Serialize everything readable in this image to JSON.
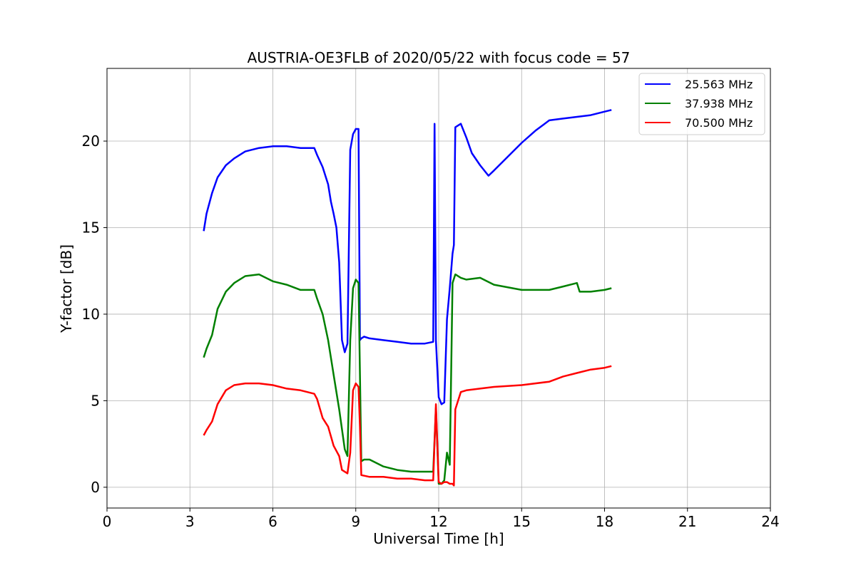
{
  "chart_data": {
    "type": "line",
    "title": "AUSTRIA-OE3FLB of 2020/05/22 with focus code = 57",
    "xlabel": "Universal Time [h]",
    "ylabel": "Y-factor [dB]",
    "xlim": [
      0,
      24
    ],
    "ylim": [
      -1.2,
      24.2
    ],
    "xticks": [
      0,
      3,
      6,
      9,
      12,
      15,
      18,
      21,
      24
    ],
    "yticks": [
      0,
      5,
      10,
      15,
      20
    ],
    "grid": true,
    "legend_position": "top-right",
    "series": [
      {
        "name": "25.563 MHz",
        "color": "#0000ff",
        "x": [
          3.5,
          3.6,
          3.8,
          4.0,
          4.3,
          4.6,
          5.0,
          5.5,
          6.0,
          6.5,
          7.0,
          7.5,
          7.6,
          7.8,
          8.0,
          8.1,
          8.2,
          8.3,
          8.4,
          8.5,
          8.6,
          8.7,
          8.8,
          8.9,
          9.0,
          9.1,
          9.15,
          9.2,
          9.3,
          9.5,
          10.0,
          10.5,
          11.0,
          11.5,
          11.8,
          11.85,
          11.9,
          12.0,
          12.1,
          12.2,
          12.3,
          12.4,
          12.5,
          12.55,
          12.6,
          12.8,
          13.0,
          13.2,
          13.5,
          13.8,
          14.0,
          14.5,
          15.0,
          15.5,
          16.0,
          16.5,
          17.0,
          17.5,
          18.0,
          18.25
        ],
        "y": [
          14.8,
          15.8,
          17.0,
          17.9,
          18.6,
          19.0,
          19.4,
          19.6,
          19.7,
          19.7,
          19.6,
          19.6,
          19.2,
          18.5,
          17.5,
          16.5,
          15.8,
          15.0,
          13.0,
          8.5,
          7.8,
          8.3,
          19.5,
          20.4,
          20.7,
          20.7,
          8.5,
          8.6,
          8.7,
          8.6,
          8.5,
          8.4,
          8.3,
          8.3,
          8.4,
          21.0,
          8.5,
          5.2,
          4.8,
          4.9,
          9.7,
          11.5,
          13.5,
          14.0,
          20.8,
          21.0,
          20.2,
          19.3,
          18.6,
          18.0,
          18.3,
          19.1,
          19.9,
          20.6,
          21.2,
          21.3,
          21.4,
          21.5,
          21.7,
          21.8
        ]
      },
      {
        "name": "37.938 MHz",
        "color": "#008000",
        "x": [
          3.5,
          3.6,
          3.8,
          4.0,
          4.3,
          4.6,
          5.0,
          5.5,
          6.0,
          6.5,
          7.0,
          7.5,
          7.6,
          7.8,
          8.0,
          8.2,
          8.4,
          8.6,
          8.7,
          8.8,
          8.9,
          9.0,
          9.1,
          9.2,
          9.3,
          9.5,
          10.0,
          10.5,
          11.0,
          11.5,
          11.8,
          11.9,
          12.0,
          12.1,
          12.2,
          12.3,
          12.4,
          12.5,
          12.6,
          12.8,
          13.0,
          13.5,
          14.0,
          15.0,
          16.0,
          16.5,
          17.0,
          17.1,
          17.5,
          18.0,
          18.25
        ],
        "y": [
          7.5,
          8.0,
          8.8,
          10.3,
          11.3,
          11.8,
          12.2,
          12.3,
          11.9,
          11.7,
          11.4,
          11.4,
          10.9,
          10.0,
          8.5,
          6.5,
          4.5,
          2.2,
          1.8,
          8.5,
          11.5,
          12.0,
          11.8,
          1.5,
          1.6,
          1.6,
          1.2,
          1.0,
          0.9,
          0.9,
          0.9,
          4.6,
          0.2,
          0.2,
          0.4,
          2.0,
          1.3,
          11.8,
          12.3,
          12.1,
          12.0,
          12.1,
          11.7,
          11.4,
          11.4,
          11.6,
          11.8,
          11.3,
          11.3,
          11.4,
          11.5
        ]
      },
      {
        "name": "70.500 MHz",
        "color": "#ff0000",
        "x": [
          3.5,
          3.6,
          3.8,
          4.0,
          4.3,
          4.6,
          5.0,
          5.5,
          6.0,
          6.5,
          7.0,
          7.5,
          7.6,
          7.8,
          8.0,
          8.2,
          8.4,
          8.5,
          8.7,
          8.8,
          8.9,
          9.0,
          9.1,
          9.15,
          9.2,
          9.5,
          10.0,
          10.5,
          11.0,
          11.5,
          11.8,
          11.9,
          12.0,
          12.1,
          12.2,
          12.3,
          12.4,
          12.5,
          12.55,
          12.6,
          12.8,
          13.0,
          13.5,
          14.0,
          15.0,
          16.0,
          16.5,
          17.0,
          17.5,
          18.0,
          18.25
        ],
        "y": [
          3.0,
          3.3,
          3.8,
          4.8,
          5.6,
          5.9,
          6.0,
          6.0,
          5.9,
          5.7,
          5.6,
          5.4,
          5.1,
          4.0,
          3.5,
          2.4,
          1.8,
          1.0,
          0.8,
          2.0,
          5.6,
          6.0,
          5.8,
          3.5,
          0.7,
          0.6,
          0.6,
          0.5,
          0.5,
          0.4,
          0.4,
          4.8,
          0.3,
          0.2,
          0.3,
          0.3,
          0.2,
          0.2,
          0.1,
          4.5,
          5.5,
          5.6,
          5.7,
          5.8,
          5.9,
          6.1,
          6.4,
          6.6,
          6.8,
          6.9,
          7.0
        ]
      }
    ]
  }
}
